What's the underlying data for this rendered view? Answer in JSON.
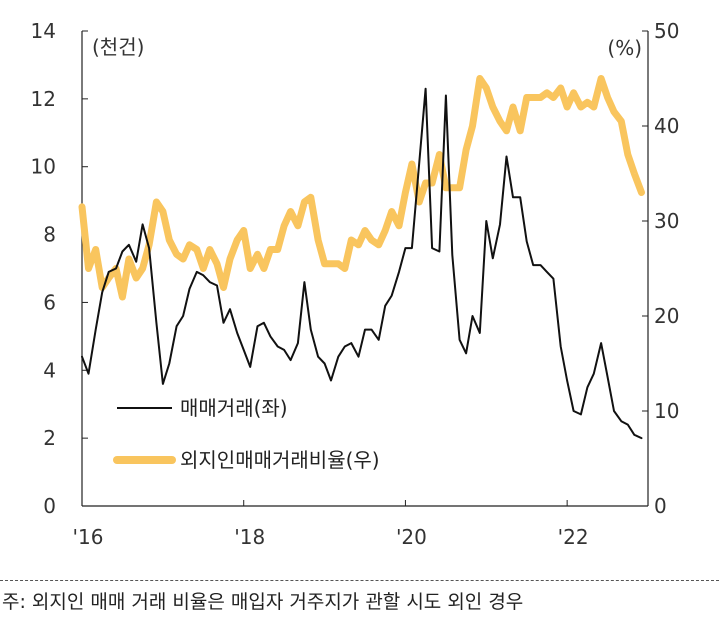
{
  "chart_data": {
    "type": "line",
    "left_axis": {
      "unit": "(천건)",
      "ticks": [
        "0",
        "2",
        "4",
        "6",
        "8",
        "10",
        "12",
        "14"
      ],
      "min": 0,
      "max": 14
    },
    "right_axis": {
      "unit": "(%)",
      "ticks": [
        "0",
        "10",
        "20",
        "30",
        "40",
        "50"
      ],
      "min": 0,
      "max": 50
    },
    "x_ticks": [
      {
        "label": "'16",
        "x": 2016.0
      },
      {
        "label": "'18",
        "x": 2018.0
      },
      {
        "label": "'20",
        "x": 2020.0
      },
      {
        "label": "'22",
        "x": 2022.0
      }
    ],
    "x_range": [
      2016.0,
      2023.0
    ],
    "grid": false,
    "legend_position": "lower-left",
    "series": [
      {
        "name": "매매거래(좌)",
        "axis": "left",
        "color": "#111111",
        "x": [
          2016.0,
          2016.08,
          2016.17,
          2016.25,
          2016.33,
          2016.42,
          2016.5,
          2016.58,
          2016.67,
          2016.75,
          2016.83,
          2016.92,
          2017.0,
          2017.08,
          2017.17,
          2017.25,
          2017.33,
          2017.42,
          2017.5,
          2017.58,
          2017.67,
          2017.75,
          2017.83,
          2017.92,
          2018.0,
          2018.08,
          2018.17,
          2018.25,
          2018.33,
          2018.42,
          2018.5,
          2018.58,
          2018.67,
          2018.75,
          2018.83,
          2018.92,
          2019.0,
          2019.08,
          2019.17,
          2019.25,
          2019.33,
          2019.42,
          2019.5,
          2019.58,
          2019.67,
          2019.75,
          2019.83,
          2019.92,
          2020.0,
          2020.08,
          2020.17,
          2020.25,
          2020.33,
          2020.42,
          2020.5,
          2020.58,
          2020.67,
          2020.75,
          2020.83,
          2020.92,
          2021.0,
          2021.08,
          2021.17,
          2021.25,
          2021.33,
          2021.42,
          2021.5,
          2021.58,
          2021.67,
          2021.75,
          2021.83,
          2021.92,
          2022.0,
          2022.08,
          2022.17,
          2022.25,
          2022.33,
          2022.42,
          2022.5,
          2022.58,
          2022.67,
          2022.75,
          2022.83,
          2022.92
        ],
        "values": [
          4.4,
          3.9,
          5.2,
          6.3,
          6.9,
          7.0,
          7.5,
          7.7,
          7.2,
          8.3,
          7.6,
          5.4,
          3.6,
          4.2,
          5.3,
          5.6,
          6.4,
          6.9,
          6.8,
          6.6,
          6.5,
          5.4,
          5.8,
          5.1,
          4.6,
          4.1,
          5.3,
          5.4,
          5.0,
          4.7,
          4.6,
          4.3,
          4.8,
          6.6,
          5.2,
          4.4,
          4.2,
          3.7,
          4.4,
          4.7,
          4.8,
          4.4,
          5.2,
          5.2,
          4.9,
          5.9,
          6.2,
          6.9,
          7.6,
          7.6,
          10.1,
          12.3,
          7.6,
          7.5,
          12.1,
          7.4,
          4.9,
          4.5,
          5.6,
          5.1,
          8.4,
          7.3,
          8.3,
          10.3,
          9.1,
          9.1,
          7.8,
          7.1,
          7.1,
          6.9,
          6.7,
          4.7,
          3.7,
          2.8,
          2.7,
          3.5,
          3.9,
          4.8,
          3.8,
          2.8,
          2.5,
          2.4,
          2.1,
          2.0
        ]
      },
      {
        "name": "외지인매매거래비율(우)",
        "axis": "right",
        "color": "#F9C55E",
        "x": [
          2016.0,
          2016.08,
          2016.17,
          2016.25,
          2016.33,
          2016.42,
          2016.5,
          2016.58,
          2016.67,
          2016.75,
          2016.83,
          2016.92,
          2017.0,
          2017.08,
          2017.17,
          2017.25,
          2017.33,
          2017.42,
          2017.5,
          2017.58,
          2017.67,
          2017.75,
          2017.83,
          2017.92,
          2018.0,
          2018.08,
          2018.17,
          2018.25,
          2018.33,
          2018.42,
          2018.5,
          2018.58,
          2018.67,
          2018.75,
          2018.83,
          2018.92,
          2019.0,
          2019.08,
          2019.17,
          2019.25,
          2019.33,
          2019.42,
          2019.5,
          2019.58,
          2019.67,
          2019.75,
          2019.83,
          2019.92,
          2020.0,
          2020.08,
          2020.17,
          2020.25,
          2020.33,
          2020.42,
          2020.5,
          2020.58,
          2020.67,
          2020.75,
          2020.83,
          2020.92,
          2021.0,
          2021.08,
          2021.17,
          2021.25,
          2021.33,
          2021.42,
          2021.5,
          2021.58,
          2021.67,
          2021.75,
          2021.83,
          2021.92,
          2022.0,
          2022.08,
          2022.17,
          2022.25,
          2022.33,
          2022.42,
          2022.5,
          2022.58,
          2022.67,
          2022.75,
          2022.83,
          2022.92
        ],
        "values": [
          31.5,
          25.0,
          27.0,
          23.0,
          24.0,
          25.0,
          22.0,
          26.0,
          24.0,
          25.0,
          27.5,
          32.0,
          31.0,
          28.0,
          26.5,
          26.0,
          27.5,
          27.0,
          25.0,
          27.0,
          25.5,
          23.0,
          26.0,
          28.0,
          29.0,
          25.0,
          26.5,
          25.0,
          27.0,
          27.0,
          29.5,
          31.0,
          29.5,
          32.0,
          32.5,
          28.0,
          25.5,
          25.5,
          25.5,
          25.0,
          28.0,
          27.5,
          29.0,
          28.0,
          27.5,
          29.0,
          31.0,
          29.5,
          33.0,
          36.0,
          32.0,
          34.0,
          34.0,
          37.0,
          33.5,
          33.5,
          33.5,
          37.5,
          40.0,
          45.0,
          44.0,
          42.0,
          40.5,
          39.5,
          42.0,
          39.5,
          43.0,
          43.0,
          43.0,
          43.5,
          43.0,
          44.0,
          42.0,
          43.5,
          42.0,
          42.5,
          42.0,
          45.0,
          43.0,
          41.5,
          40.5,
          37.0,
          35.0,
          33.0
        ]
      }
    ]
  },
  "footnote": "주: 외지인 매매 거래 비율은 매입자 거주지가 관할 시도 외인 경우"
}
